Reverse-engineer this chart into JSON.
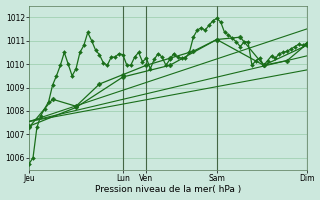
{
  "bg_color": "#cce8dd",
  "grid_color": "#99ccaa",
  "line_color": "#1a6e1a",
  "title": "Pression niveau de la mer( hPa )",
  "ylim": [
    1005.5,
    1012.5
  ],
  "yticks": [
    1006,
    1007,
    1008,
    1009,
    1010,
    1011,
    1012
  ],
  "x_tick_labels": [
    "Jeu",
    "Lun",
    "Ven",
    "Sam",
    "Dim"
  ],
  "x_tick_positions": [
    0,
    24,
    30,
    48,
    71
  ],
  "vlines": [
    24,
    30,
    48,
    71
  ],
  "lines": [
    {
      "x": [
        0,
        1,
        2,
        3,
        4,
        5,
        6,
        7,
        8,
        9,
        10,
        11,
        12,
        13,
        14,
        15,
        16,
        17,
        18,
        19,
        20,
        21,
        22,
        23,
        24,
        25,
        26,
        27,
        28,
        29,
        30,
        31,
        32,
        33,
        34,
        35,
        36,
        37,
        38,
        39,
        40,
        41,
        42,
        43,
        44,
        45,
        46,
        47,
        48,
        49,
        50,
        51,
        52,
        53,
        54,
        55,
        56,
        57,
        58,
        59,
        60,
        61,
        62,
        63,
        64,
        65,
        66,
        67,
        68,
        69,
        70,
        71
      ],
      "y": [
        1005.75,
        1006.0,
        1007.3,
        1007.8,
        1008.1,
        1008.4,
        1009.1,
        1009.5,
        1009.95,
        1010.5,
        1010.0,
        1009.5,
        1009.8,
        1010.5,
        1010.8,
        1011.35,
        1011.0,
        1010.6,
        1010.4,
        1010.05,
        1009.95,
        1010.3,
        1010.3,
        1010.45,
        1010.4,
        1009.95,
        1009.95,
        1010.3,
        1010.5,
        1010.1,
        1010.25,
        1009.8,
        1010.2,
        1010.45,
        1010.3,
        1009.95,
        1010.2,
        1010.45,
        1010.3,
        1010.25,
        1010.25,
        1010.5,
        1011.15,
        1011.45,
        1011.55,
        1011.45,
        1011.65,
        1011.85,
        1011.95,
        1011.8,
        1011.35,
        1011.25,
        1011.1,
        1010.95,
        1010.75,
        1010.95,
        1010.95,
        1009.95,
        1010.15,
        1010.25,
        1009.95,
        1010.15,
        1010.35,
        1010.25,
        1010.45,
        1010.5,
        1010.55,
        1010.65,
        1010.75,
        1010.85,
        1010.8,
        1010.9
      ],
      "marker": true,
      "lw": 0.9,
      "ms": 2.0
    },
    {
      "x": [
        0,
        6,
        12,
        18,
        24,
        30,
        36,
        42,
        48,
        54,
        60,
        66,
        71
      ],
      "y": [
        1007.3,
        1008.5,
        1008.2,
        1009.15,
        1009.55,
        1009.95,
        1010.25,
        1010.55,
        1011.05,
        1011.15,
        1009.95,
        1010.15,
        1010.85
      ],
      "marker": true,
      "lw": 0.9,
      "ms": 2.5
    },
    {
      "x": [
        0,
        12,
        24,
        36,
        48,
        60,
        71
      ],
      "y": [
        1007.35,
        1008.15,
        1009.45,
        1009.95,
        1011.05,
        1009.95,
        1010.8
      ],
      "marker": true,
      "lw": 0.9,
      "ms": 2.5
    },
    {
      "x": [
        0,
        71
      ],
      "y": [
        1007.55,
        1011.5
      ],
      "marker": false,
      "lw": 0.8,
      "ms": 0
    },
    {
      "x": [
        0,
        71
      ],
      "y": [
        1007.55,
        1009.75
      ],
      "marker": false,
      "lw": 0.8,
      "ms": 0
    },
    {
      "x": [
        0,
        71
      ],
      "y": [
        1007.55,
        1010.35
      ],
      "marker": false,
      "lw": 0.8,
      "ms": 0
    }
  ]
}
